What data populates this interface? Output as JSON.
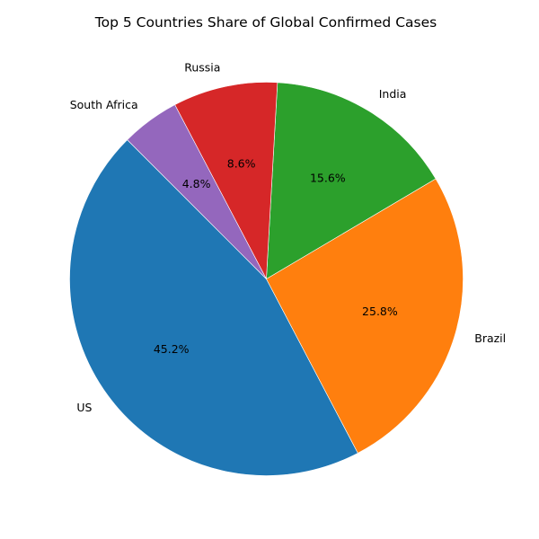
{
  "chart_data": {
    "type": "pie",
    "title": "Top 5 Countries Share of Global Confirmed Cases",
    "start_angle_deg": 135,
    "direction": "counterclockwise",
    "slices": [
      {
        "label": "US",
        "value": 45.2,
        "pct_label": "45.2%",
        "color": "#1f77b4"
      },
      {
        "label": "Brazil",
        "value": 25.8,
        "pct_label": "25.8%",
        "color": "#ff7f0e"
      },
      {
        "label": "India",
        "value": 15.6,
        "pct_label": "15.6%",
        "color": "#2ca02c"
      },
      {
        "label": "Russia",
        "value": 8.6,
        "pct_label": "8.6%",
        "color": "#d62728"
      },
      {
        "label": "South Africa",
        "value": 4.8,
        "pct_label": "4.8%",
        "color": "#9467bd"
      }
    ]
  }
}
